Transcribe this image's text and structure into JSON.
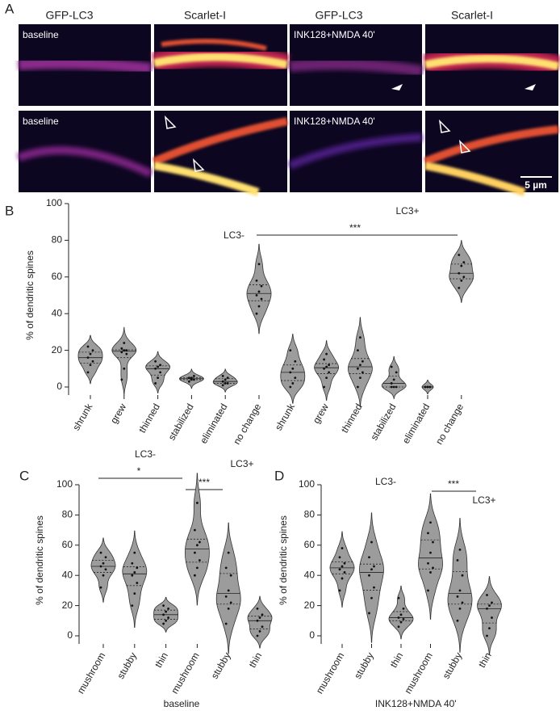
{
  "panel_a": {
    "label": "A",
    "column_headers": [
      "GFP-LC3",
      "Scarlet-I",
      "GFP-LC3",
      "Scarlet-I"
    ],
    "image_labels": [
      "baseline",
      "INK128+NMDA 40'",
      "baseline",
      "INK128+NMDA 40'"
    ],
    "scale_bar": "5 µm"
  },
  "chart_data": [
    {
      "type": "violin",
      "panel": "B",
      "ylabel": "% of dendritic spines",
      "color": "#9c9c9c",
      "annotations": [
        "LC3-",
        "LC3+",
        "***"
      ],
      "categories": [
        "shrunk",
        "grew",
        "thinned",
        "stabilized",
        "eliminated",
        "no change",
        "shrunk",
        "grew",
        "thinned",
        "stabilized",
        "eliminated",
        "no change"
      ],
      "values": [
        [
          8,
          12,
          14,
          16,
          18,
          20,
          22
        ],
        [
          4,
          10,
          18,
          19,
          20,
          20,
          21,
          24
        ],
        [
          2,
          5,
          8,
          10,
          11,
          12,
          14
        ],
        [
          3,
          4,
          4,
          5,
          5,
          6
        ],
        [
          1,
          2,
          2,
          3,
          4,
          5,
          6
        ],
        [
          40,
          44,
          48,
          50,
          52,
          55,
          58,
          67
        ],
        [
          0,
          2,
          5,
          8,
          10,
          14,
          20
        ],
        [
          0,
          5,
          8,
          10,
          11,
          12,
          15,
          18
        ],
        [
          0,
          5,
          8,
          10,
          12,
          14,
          20,
          27
        ],
        [
          0,
          0,
          0,
          2,
          4,
          8,
          11
        ],
        [
          0,
          0,
          0,
          0,
          0,
          0
        ],
        [
          54,
          58,
          60,
          62,
          66,
          68,
          72
        ]
      ],
      "ylim": [
        0,
        100
      ],
      "yticks": [
        0,
        20,
        40,
        60,
        80,
        100
      ]
    },
    {
      "type": "violin",
      "panel": "C",
      "ylabel": "% of dendritic spines",
      "xlabel": "baseline",
      "color": "#9c9c9c",
      "annotations": [
        "LC3-",
        "LC3+",
        "*",
        "***"
      ],
      "categories": [
        "mushroom",
        "stubby",
        "thin",
        "mushroom",
        "stubby",
        "thin"
      ],
      "values": [
        [
          32,
          40,
          44,
          46,
          48,
          52,
          55
        ],
        [
          20,
          28,
          35,
          40,
          42,
          45,
          48,
          55
        ],
        [
          8,
          10,
          12,
          14,
          16,
          18,
          20
        ],
        [
          40,
          45,
          50,
          55,
          60,
          62,
          70,
          88
        ],
        [
          8,
          18,
          22,
          26,
          30,
          40,
          45,
          55
        ],
        [
          0,
          3,
          6,
          10,
          12,
          14,
          18
        ]
      ],
      "ylim": [
        0,
        100
      ],
      "yticks": [
        0,
        20,
        40,
        60,
        80,
        100
      ]
    },
    {
      "type": "violin",
      "panel": "D",
      "ylabel": "% of dendritic spines",
      "xlabel": "INK128+NMDA 40'",
      "color": "#9c9c9c",
      "annotations": [
        "LC3-",
        "LC3+",
        "***"
      ],
      "categories": [
        "mushroom",
        "stubby",
        "thin",
        "mushroom",
        "stubby",
        "thin"
      ],
      "values": [
        [
          30,
          38,
          42,
          44,
          46,
          48,
          52,
          58
        ],
        [
          15,
          25,
          32,
          40,
          44,
          46,
          52,
          62
        ],
        [
          6,
          9,
          11,
          12,
          14,
          18,
          25
        ],
        [
          30,
          42,
          45,
          48,
          55,
          62,
          68,
          75
        ],
        [
          10,
          18,
          22,
          26,
          30,
          40,
          50,
          57
        ],
        [
          0,
          5,
          12,
          18,
          20,
          22,
          27
        ]
      ],
      "ylim": [
        0,
        100
      ],
      "yticks": [
        0,
        20,
        40,
        60,
        80,
        100
      ]
    }
  ]
}
